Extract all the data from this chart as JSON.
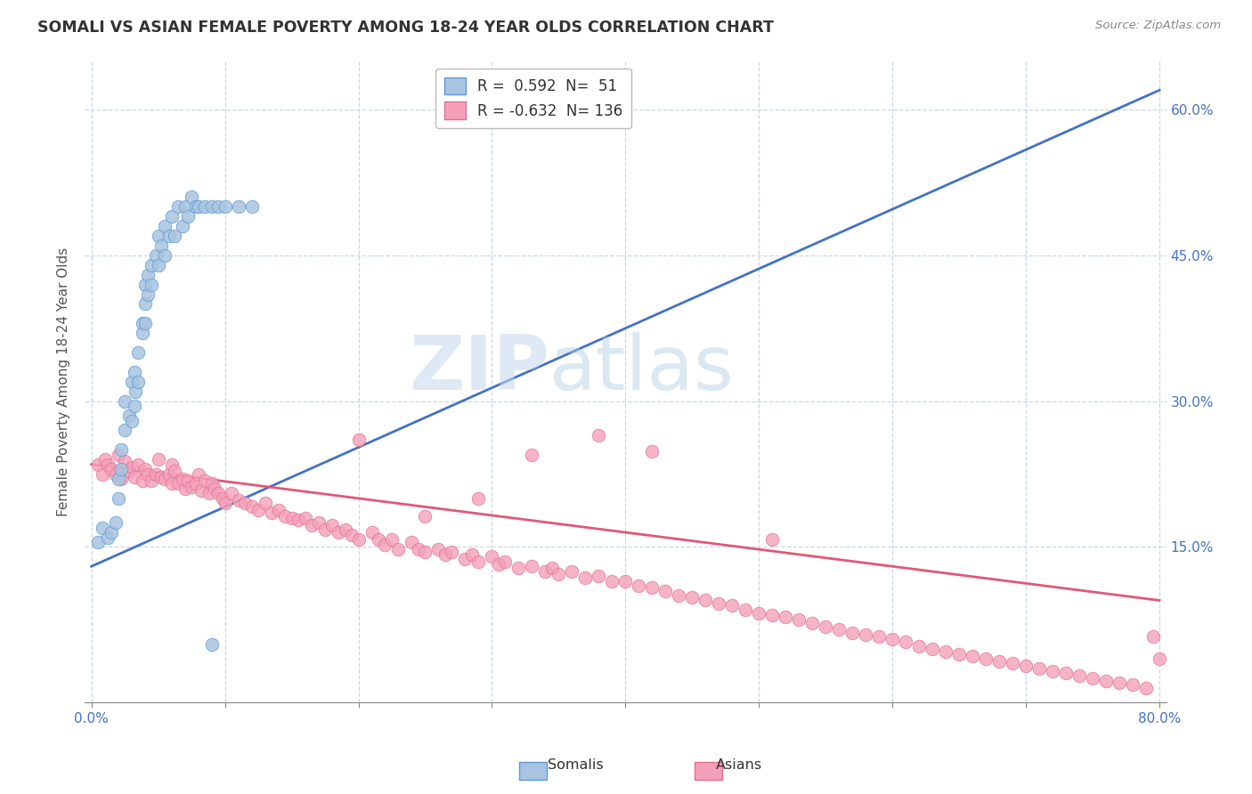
{
  "title": "SOMALI VS ASIAN FEMALE POVERTY AMONG 18-24 YEAR OLDS CORRELATION CHART",
  "source": "Source: ZipAtlas.com",
  "ylabel": "Female Poverty Among 18-24 Year Olds",
  "xlim": [
    -0.005,
    0.805
  ],
  "ylim": [
    -0.01,
    0.65
  ],
  "somali_R": 0.592,
  "somali_N": 51,
  "asian_R": -0.632,
  "asian_N": 136,
  "somali_color": "#a8c4e0",
  "somali_edge_color": "#5b9bd5",
  "somali_line_color": "#4472c4",
  "asian_color": "#f4a0b8",
  "asian_edge_color": "#e07090",
  "asian_line_color": "#e05878",
  "watermark_zip": "ZIP",
  "watermark_atlas": "atlas",
  "background_color": "#ffffff",
  "grid_color": "#c8d8e8",
  "somali_x": [
    0.005,
    0.008,
    0.012,
    0.015,
    0.018,
    0.02,
    0.02,
    0.022,
    0.022,
    0.025,
    0.025,
    0.028,
    0.03,
    0.03,
    0.032,
    0.032,
    0.033,
    0.035,
    0.035,
    0.038,
    0.038,
    0.04,
    0.04,
    0.04,
    0.042,
    0.042,
    0.045,
    0.045,
    0.048,
    0.05,
    0.05,
    0.052,
    0.055,
    0.055,
    0.058,
    0.06,
    0.062,
    0.065,
    0.068,
    0.07,
    0.072,
    0.075,
    0.078,
    0.08,
    0.085,
    0.09,
    0.095,
    0.1,
    0.11,
    0.12,
    0.09
  ],
  "somali_y": [
    0.155,
    0.17,
    0.16,
    0.165,
    0.175,
    0.22,
    0.2,
    0.25,
    0.23,
    0.3,
    0.27,
    0.285,
    0.32,
    0.28,
    0.33,
    0.295,
    0.31,
    0.35,
    0.32,
    0.38,
    0.37,
    0.42,
    0.4,
    0.38,
    0.43,
    0.41,
    0.44,
    0.42,
    0.45,
    0.47,
    0.44,
    0.46,
    0.48,
    0.45,
    0.47,
    0.49,
    0.47,
    0.5,
    0.48,
    0.5,
    0.49,
    0.51,
    0.5,
    0.5,
    0.5,
    0.5,
    0.5,
    0.5,
    0.5,
    0.5,
    0.05
  ],
  "asian_x": [
    0.005,
    0.008,
    0.01,
    0.012,
    0.015,
    0.018,
    0.02,
    0.022,
    0.025,
    0.028,
    0.03,
    0.032,
    0.035,
    0.038,
    0.04,
    0.042,
    0.045,
    0.048,
    0.05,
    0.052,
    0.055,
    0.058,
    0.06,
    0.06,
    0.062,
    0.065,
    0.068,
    0.07,
    0.072,
    0.075,
    0.078,
    0.08,
    0.082,
    0.085,
    0.088,
    0.09,
    0.092,
    0.095,
    0.098,
    0.1,
    0.105,
    0.11,
    0.115,
    0.12,
    0.125,
    0.13,
    0.135,
    0.14,
    0.145,
    0.15,
    0.155,
    0.16,
    0.165,
    0.17,
    0.175,
    0.18,
    0.185,
    0.19,
    0.195,
    0.2,
    0.21,
    0.215,
    0.22,
    0.225,
    0.23,
    0.24,
    0.245,
    0.25,
    0.26,
    0.265,
    0.27,
    0.28,
    0.285,
    0.29,
    0.3,
    0.305,
    0.31,
    0.32,
    0.33,
    0.34,
    0.345,
    0.35,
    0.36,
    0.37,
    0.38,
    0.39,
    0.4,
    0.41,
    0.42,
    0.43,
    0.44,
    0.45,
    0.46,
    0.47,
    0.48,
    0.49,
    0.5,
    0.51,
    0.52,
    0.53,
    0.54,
    0.55,
    0.56,
    0.57,
    0.58,
    0.59,
    0.6,
    0.61,
    0.62,
    0.63,
    0.64,
    0.65,
    0.66,
    0.67,
    0.68,
    0.69,
    0.7,
    0.71,
    0.72,
    0.73,
    0.74,
    0.75,
    0.76,
    0.77,
    0.78,
    0.79,
    0.795,
    0.8,
    0.38,
    0.25,
    0.51,
    0.42,
    0.33,
    0.29,
    0.2
  ],
  "asian_y": [
    0.235,
    0.225,
    0.24,
    0.235,
    0.23,
    0.225,
    0.245,
    0.22,
    0.238,
    0.228,
    0.232,
    0.222,
    0.235,
    0.218,
    0.23,
    0.225,
    0.218,
    0.225,
    0.24,
    0.222,
    0.22,
    0.225,
    0.235,
    0.215,
    0.228,
    0.215,
    0.22,
    0.21,
    0.218,
    0.212,
    0.215,
    0.225,
    0.208,
    0.218,
    0.205,
    0.215,
    0.21,
    0.205,
    0.2,
    0.195,
    0.205,
    0.198,
    0.195,
    0.192,
    0.188,
    0.195,
    0.185,
    0.188,
    0.182,
    0.18,
    0.178,
    0.18,
    0.172,
    0.175,
    0.168,
    0.172,
    0.165,
    0.168,
    0.162,
    0.158,
    0.165,
    0.158,
    0.152,
    0.158,
    0.148,
    0.155,
    0.148,
    0.145,
    0.148,
    0.142,
    0.145,
    0.138,
    0.142,
    0.135,
    0.14,
    0.132,
    0.135,
    0.128,
    0.13,
    0.125,
    0.128,
    0.122,
    0.125,
    0.118,
    0.12,
    0.115,
    0.115,
    0.11,
    0.108,
    0.105,
    0.1,
    0.098,
    0.095,
    0.092,
    0.09,
    0.085,
    0.082,
    0.08,
    0.078,
    0.075,
    0.072,
    0.068,
    0.065,
    0.062,
    0.06,
    0.058,
    0.055,
    0.052,
    0.048,
    0.045,
    0.042,
    0.04,
    0.038,
    0.035,
    0.032,
    0.03,
    0.028,
    0.025,
    0.022,
    0.02,
    0.018,
    0.015,
    0.012,
    0.01,
    0.008,
    0.005,
    0.058,
    0.035,
    0.265,
    0.182,
    0.158,
    0.248,
    0.245,
    0.2,
    0.26
  ],
  "somali_line_x": [
    0.0,
    0.8
  ],
  "somali_line_y": [
    0.13,
    0.62
  ],
  "asian_line_x": [
    0.0,
    0.8
  ],
  "asian_line_y": [
    0.235,
    0.095
  ]
}
